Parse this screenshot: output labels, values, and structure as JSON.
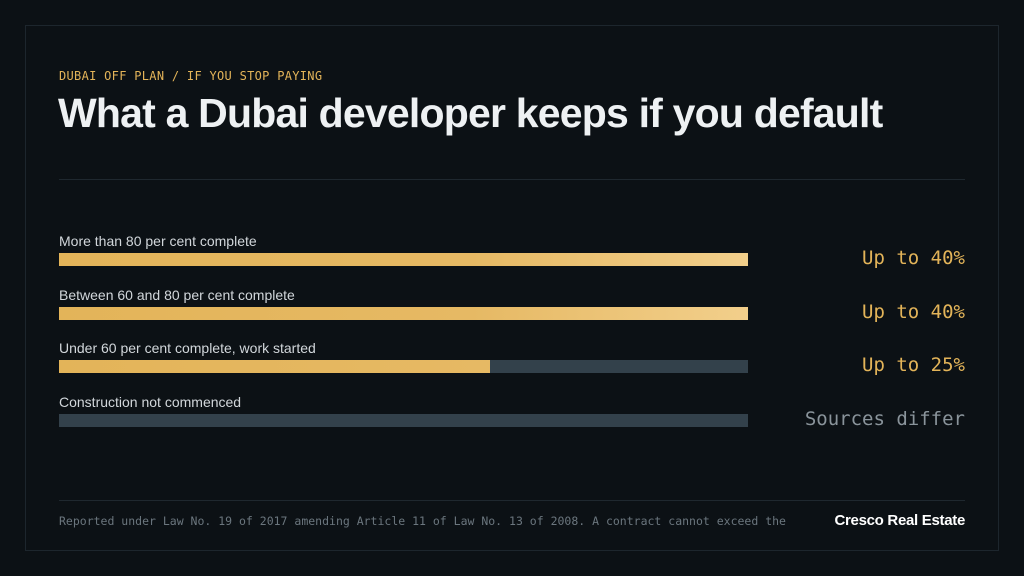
{
  "header": {
    "eyebrow": "DUBAI OFF PLAN / IF YOU STOP PAYING",
    "title": "What a Dubai developer keeps if you default"
  },
  "footer": {
    "note": "Reported under Law No. 19 of 2017 amending Article 11 of Law No. 13 of 2008. A contract cannot exceed the",
    "brand": "Cresco Real Estate"
  },
  "colors": {
    "background": "#0c1115",
    "gold": "#e3b459",
    "track": "#33414b",
    "muted_value": "#8a949b"
  },
  "chart_data": {
    "type": "bar",
    "orientation": "horizontal",
    "categories": [
      "More than 80 per cent complete",
      "Between 60 and 80 per cent complete",
      "Under 60 per cent complete, work started",
      "Construction not commenced"
    ],
    "values": [
      40,
      40,
      25,
      null
    ],
    "value_labels": [
      "Up to 40%",
      "Up to 40%",
      "Up to 25%",
      "Sources differ"
    ],
    "xlim": [
      0,
      40
    ],
    "grid": false
  }
}
